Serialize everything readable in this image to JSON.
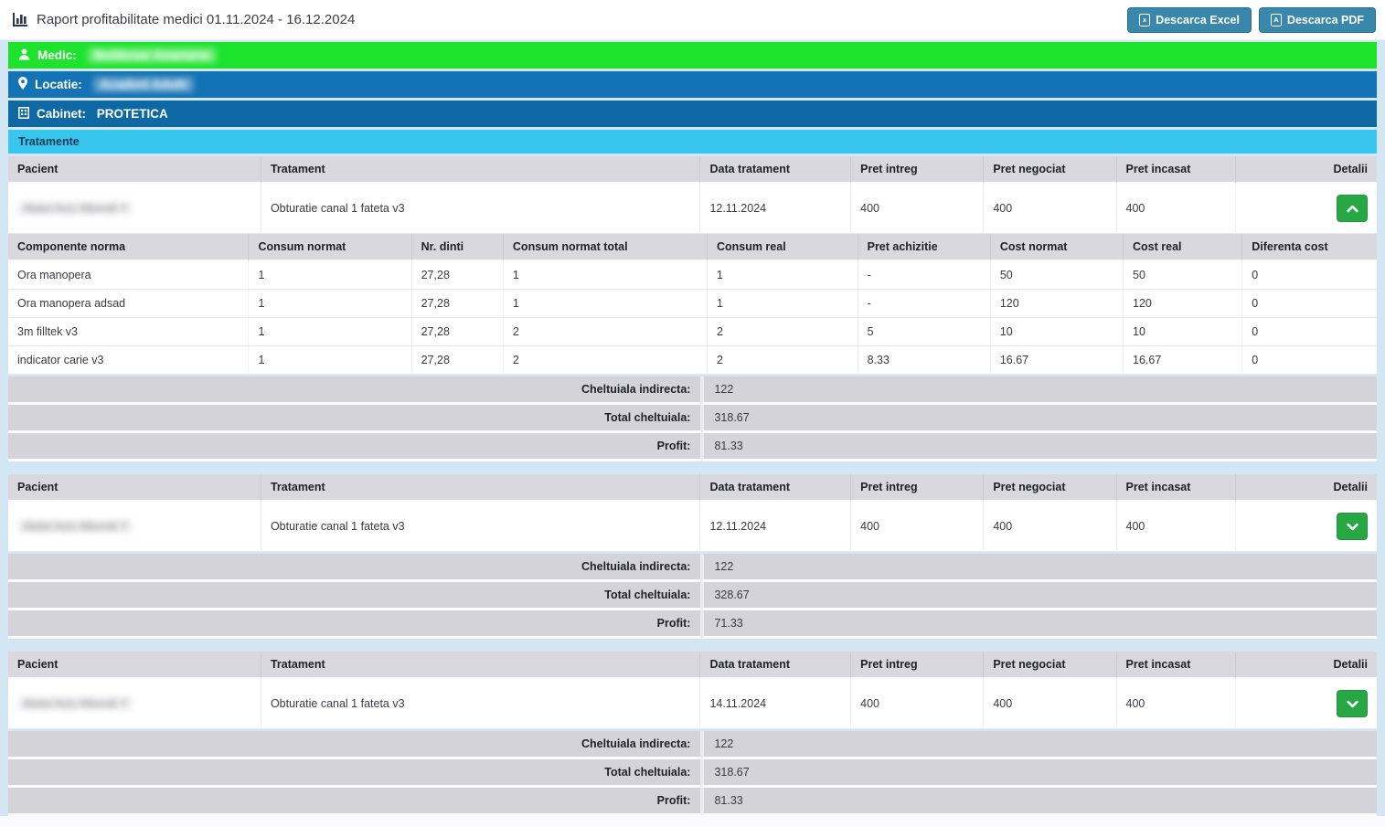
{
  "header": {
    "title": "Raport profitabilitate medici 01.11.2024 - 16.12.2024",
    "buttons": [
      {
        "label": "Descarca Excel",
        "icon": "excel-file-icon",
        "icon_letter": "x"
      },
      {
        "label": "Descarca PDF",
        "icon": "pdf-file-icon",
        "icon_letter": "A"
      }
    ]
  },
  "info": {
    "medic_label": "Medic: ",
    "medic_value": "Boldizsar Anamaria",
    "locatie_label": "Locatie: ",
    "locatie_value": "Acadent Adulti",
    "cabinet_label": "Cabinet: ",
    "cabinet_value": "PROTETICA",
    "section_title": "Tratamente"
  },
  "treatment_table": {
    "columns": [
      "Pacient",
      "Tratament",
      "Data tratament",
      "Pret intreg",
      "Pret negociat",
      "Pret incasat",
      "Detalii"
    ],
    "detail_columns": [
      "Componente norma",
      "Consum normat",
      "Nr. dinti",
      "Consum normat total",
      "Consum real",
      "Pret achizitie",
      "Cost normat",
      "Cost real",
      "Diferenta cost"
    ],
    "blocks": [
      {
        "patient": "Abdul Aziz Albondi Y",
        "treatment": "Obturatie canal 1 fateta v3",
        "date": "12.11.2024",
        "pret_intreg": "400",
        "pret_negociat": "400",
        "pret_incasat": "400",
        "expanded": true,
        "detail_rows": [
          [
            "Ora manopera",
            "1",
            "27,28",
            "1",
            "1",
            "-",
            "50",
            "50",
            "0"
          ],
          [
            "Ora manopera adsad",
            "1",
            "27,28",
            "1",
            "1",
            "-",
            "120",
            "120",
            "0"
          ],
          [
            "3m filltek v3",
            "1",
            "27,28",
            "2",
            "2",
            "5",
            "10",
            "10",
            "0"
          ],
          [
            "indicator carie v3",
            "1",
            "27,28",
            "2",
            "2",
            "8.33",
            "16.67",
            "16.67",
            "0"
          ]
        ],
        "summary": [
          {
            "label": "Cheltuiala indirecta:",
            "value": "122"
          },
          {
            "label": "Total cheltuiala:",
            "value": "318.67"
          },
          {
            "label": "Profit:",
            "value": "81.33"
          }
        ]
      },
      {
        "patient": "Abdul Aziz Albondi Y",
        "treatment": "Obturatie canal 1 fateta v3",
        "date": "12.11.2024",
        "pret_intreg": "400",
        "pret_negociat": "400",
        "pret_incasat": "400",
        "expanded": false,
        "detail_rows": [],
        "summary": [
          {
            "label": "Cheltuiala indirecta:",
            "value": "122"
          },
          {
            "label": "Total cheltuiala:",
            "value": "328.67"
          },
          {
            "label": "Profit:",
            "value": "71.33"
          }
        ]
      },
      {
        "patient": "Abdul Aziz Albondi Y",
        "treatment": "Obturatie canal 1 fateta v3",
        "date": "14.11.2024",
        "pret_intreg": "400",
        "pret_negociat": "400",
        "pret_incasat": "400",
        "expanded": false,
        "detail_rows": [],
        "summary": [
          {
            "label": "Cheltuiala indirecta:",
            "value": "122"
          },
          {
            "label": "Total cheltuiala:",
            "value": "318.67"
          },
          {
            "label": "Profit:",
            "value": "81.33"
          }
        ]
      }
    ]
  },
  "colors": {
    "medic_bar": "#1de32d",
    "locatie_bar": "#1473b5",
    "cabinet_bar": "#0d68a4",
    "tratamente_bar": "#38c5ee",
    "download_button": "#3a87ad",
    "detail_button": "#28a745",
    "table_header": "#d8d8de",
    "summary_row": "#d3d3d9",
    "page_margin": "#d3e6f3"
  }
}
